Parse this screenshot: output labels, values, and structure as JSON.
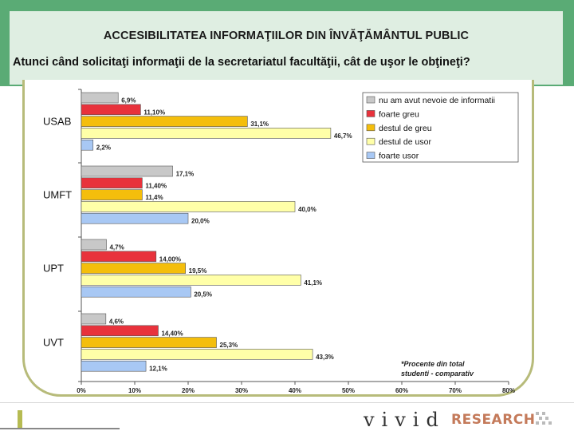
{
  "header": {
    "title": "ACCESIBILITATEA INFORMAŢIILOR DIN ÎNVĂŢĂMÂNTUL PUBLIC",
    "subtitle": "Atunci când solicitaţi informaţii de la secretariatul facultăţii, cât de uşor le obţineţi?"
  },
  "chart_data": {
    "type": "bar",
    "orientation": "horizontal",
    "categories": [
      "USAB",
      "UMFT",
      "UPT",
      "UVT"
    ],
    "series": [
      {
        "name": "nu am avut nevoie de informatii",
        "color": "#c8c8c8",
        "values": [
          6.9,
          17.1,
          4.7,
          4.6
        ],
        "labels": [
          "6,9%",
          "17,1%",
          "4,7%",
          "4,6%"
        ]
      },
      {
        "name": "foarte greu",
        "color": "#e8323c",
        "values": [
          11.1,
          11.4,
          14.0,
          14.4
        ],
        "labels": [
          "11,10%",
          "11,40%",
          "14,00%",
          "14,40%"
        ]
      },
      {
        "name": "destul de greu",
        "color": "#f4be0c",
        "values": [
          31.1,
          11.4,
          19.5,
          25.3
        ],
        "labels": [
          "31,1%",
          "11,4%",
          "19,5%",
          "25,3%"
        ]
      },
      {
        "name": "destul de usor",
        "color": "#ffffa8",
        "values": [
          46.7,
          40.0,
          41.1,
          43.3
        ],
        "labels": [
          "46,7%",
          "40,0%",
          "41,1%",
          "43,3%"
        ]
      },
      {
        "name": "foarte usor",
        "color": "#a8c8f4",
        "values": [
          2.2,
          20.0,
          20.5,
          12.1
        ],
        "labels": [
          "2,2%",
          "20,0%",
          "20,5%",
          "12,1%"
        ]
      }
    ],
    "xlim": [
      0,
      80
    ],
    "xticks": [
      0,
      10,
      20,
      30,
      40,
      50,
      60,
      70,
      80
    ],
    "xtick_labels": [
      "0%",
      "10%",
      "20%",
      "30%",
      "40%",
      "50%",
      "60%",
      "70%",
      "80%"
    ],
    "legend_position": "top-right",
    "note": "*Procente din total studenti - comparativ"
  },
  "footer": {
    "brand": "vivid",
    "brand_suffix": "RESEARCH"
  }
}
